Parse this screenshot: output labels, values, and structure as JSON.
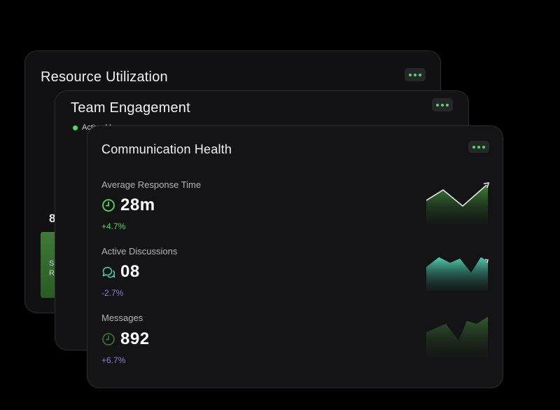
{
  "cards": {
    "back": {
      "title": "Resource Utilization",
      "partial_value": "8",
      "bar_label_line1": "S",
      "bar_label_line2": "Re"
    },
    "mid": {
      "title": "Team Engagement",
      "legend_partial": "Active M"
    },
    "front": {
      "title": "Communication Health",
      "metrics": [
        {
          "label": "Average Response Time",
          "value": "28m",
          "change": "+4.7%",
          "icon": "clock-icon",
          "change_color": "#4ade5a"
        },
        {
          "label": "Active Discussions",
          "value": "08",
          "change": "-2.7%",
          "icon": "chat-bubbles-icon",
          "change_color": "#8b7fd8"
        },
        {
          "label": "Messages",
          "value": "892",
          "change": "+6.7%",
          "icon": "clock-icon",
          "change_color": "#8b7fd8"
        }
      ]
    }
  },
  "colors": {
    "accent_green": "#4ade5a",
    "teal": "#4fd1b0",
    "purple": "#8b7fd8"
  }
}
